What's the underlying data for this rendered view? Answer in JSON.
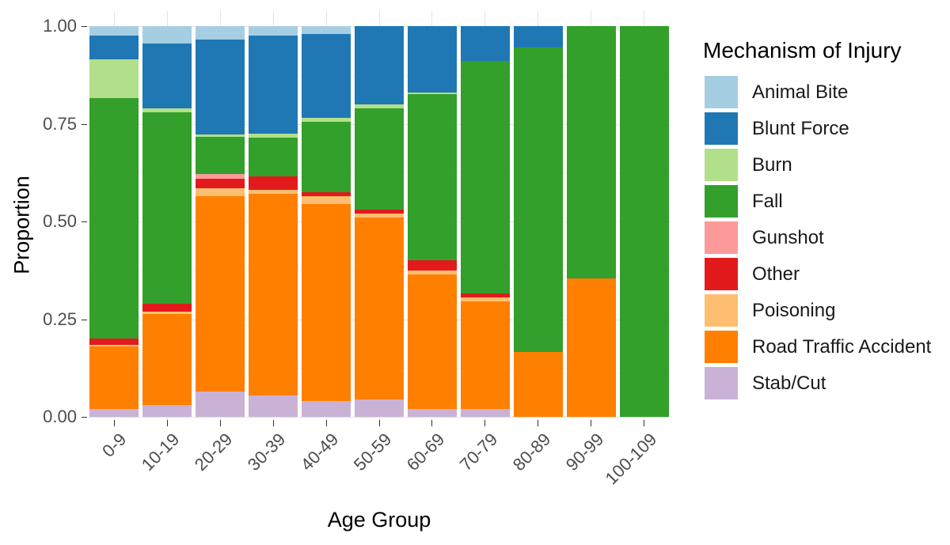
{
  "chart_data": {
    "type": "bar",
    "stacked": true,
    "normalized": true,
    "title": "",
    "xlabel": "Age Group",
    "ylabel": "Proportion",
    "ylim": [
      0,
      1
    ],
    "y_ticks": [
      {
        "value": 0.0,
        "label": "0.00"
      },
      {
        "value": 0.25,
        "label": "0.25"
      },
      {
        "value": 0.5,
        "label": "0.50"
      },
      {
        "value": 0.75,
        "label": "0.75"
      },
      {
        "value": 1.0,
        "label": "1.00"
      }
    ],
    "y_minor_gridlines": [
      0.125,
      0.375,
      0.625,
      0.875
    ],
    "grid": true,
    "legend_position": "right",
    "legend_title": "Mechanism of Injury",
    "categories": [
      "0-9",
      "10-19",
      "20-29",
      "30-39",
      "40-49",
      "50-59",
      "60-69",
      "70-79",
      "80-89",
      "90-99",
      "100-109"
    ],
    "stack_order_note": "series listed in legend order (top to bottom); bars stack bottom-to-top in reverse of this order, i.e. Stab/Cut at the bottom, Animal Bite on top",
    "series": [
      {
        "name": "Animal Bite",
        "color": "#a6cee3",
        "values": [
          0.025,
          0.045,
          0.035,
          0.025,
          0.02,
          0.0,
          0.0,
          0.0,
          0.0,
          0.0,
          0.0
        ]
      },
      {
        "name": "Blunt Force",
        "color": "#1f78b4",
        "values": [
          0.06,
          0.165,
          0.243,
          0.25,
          0.215,
          0.2,
          0.17,
          0.09,
          0.055,
          0.0,
          0.0
        ]
      },
      {
        "name": "Burn",
        "color": "#b2df8a",
        "values": [
          0.1,
          0.01,
          0.005,
          0.01,
          0.01,
          0.01,
          0.005,
          0.0,
          0.0,
          0.0,
          0.0
        ]
      },
      {
        "name": "Fall",
        "color": "#33a02c",
        "values": [
          0.615,
          0.49,
          0.095,
          0.1,
          0.18,
          0.26,
          0.425,
          0.595,
          0.78,
          0.645,
          1.0
        ]
      },
      {
        "name": "Gunshot",
        "color": "#fb9a99",
        "values": [
          0.0,
          0.0,
          0.012,
          0.0,
          0.0,
          0.0,
          0.0,
          0.0,
          0.0,
          0.0,
          0.0
        ]
      },
      {
        "name": "Other",
        "color": "#e31a1c",
        "values": [
          0.015,
          0.02,
          0.025,
          0.035,
          0.01,
          0.01,
          0.025,
          0.01,
          0.0,
          0.0,
          0.0
        ]
      },
      {
        "name": "Poisoning",
        "color": "#fdbf6f",
        "values": [
          0.005,
          0.007,
          0.02,
          0.01,
          0.02,
          0.01,
          0.01,
          0.01,
          0.0,
          0.0,
          0.0
        ]
      },
      {
        "name": "Road Traffic Accident",
        "color": "#ff7f00",
        "values": [
          0.16,
          0.233,
          0.5,
          0.515,
          0.505,
          0.465,
          0.345,
          0.275,
          0.165,
          0.355,
          0.0
        ]
      },
      {
        "name": "Stab/Cut",
        "color": "#cab2d6",
        "values": [
          0.02,
          0.03,
          0.065,
          0.055,
          0.04,
          0.045,
          0.02,
          0.02,
          0.0,
          0.0,
          0.0
        ]
      }
    ]
  }
}
